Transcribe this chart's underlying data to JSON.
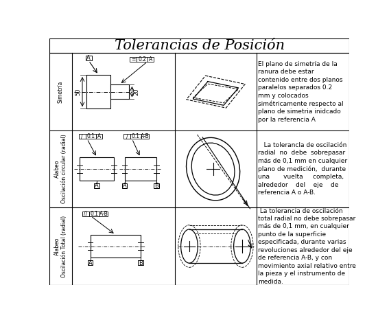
{
  "title": "Tolerancias de Posición",
  "title_fontsize": 15,
  "col_labels": [
    "Simetría",
    "Alabeo\nOscilación circular (radial)",
    "Alabeo\nOscilación Total (radial)"
  ],
  "text_col1": "El plano de simetría de la\nranura debe estar\ncontenido entre dos planos\nparalelos separados 0.2\nmm y colocados\nsimétricamente respecto al\nplano de simetria inidcado\npor la referencia A",
  "text_col2": "   La tolerancla de oscilación\nradial  no  debe  sobrepasar\nmás de 0,1 mm en cualquier\nplano de medición,  durante\nuna       vuelta     completa,\nalrededor    del    eje    de\nreferencia A o A-B.",
  "text_col3": " La tolerancia de oscilación\ntotal radial no debe sobrepasar\nmás de 0,1 mm, en cualquier\npunto de la superficie\nespecificada, durante varias\nrevoluciones alrededor del eje\nde referencia A-B, y con\nmovimiento axial relativo entre\nla pieza y el instrumento de\nmedida.",
  "bg_color": "#ffffff",
  "border_color": "#000000",
  "text_fontsize": 6.5
}
